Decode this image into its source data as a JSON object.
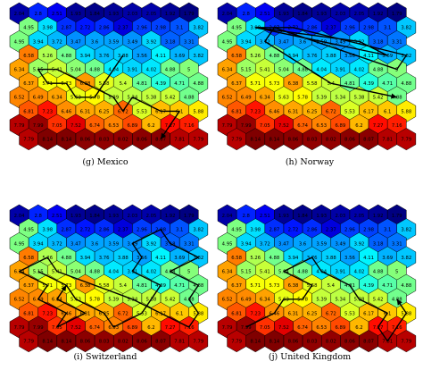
{
  "chart_data": {
    "type": "heatmap",
    "grid": {
      "rows": 10,
      "cols": 10,
      "layout": "hexagonal",
      "values": [
        [
          2.04,
          2.8,
          2.51,
          1.93,
          1.84,
          1.93,
          2.03,
          2.05,
          1.92,
          1.79
        ],
        [
          4.95,
          3.98,
          2.87,
          2.72,
          2.86,
          2.37,
          2.96,
          2.98,
          3.1,
          3.82
        ],
        [
          4.95,
          3.94,
          3.72,
          3.47,
          3.6,
          3.59,
          3.49,
          3.92,
          3.18,
          3.31
        ],
        [
          6.58,
          5.26,
          4.88,
          3.94,
          3.76,
          3.88,
          3.56,
          4.11,
          3.69,
          3.82
        ],
        [
          6.34,
          5.15,
          5.41,
          5.04,
          4.88,
          4.04,
          3.91,
          4.02,
          4.88,
          5
        ],
        [
          6.37,
          5.71,
          5.73,
          6.38,
          5.58,
          5.4,
          4.81,
          4.39,
          4.71,
          4.88
        ],
        [
          6.52,
          6.49,
          6.34,
          5.63,
          5.78,
          5.39,
          5.34,
          5.38,
          5.42,
          4.88
        ],
        [
          6.81,
          7.23,
          6.46,
          6.31,
          6.25,
          6.72,
          5.53,
          6.17,
          6.1,
          5.88
        ],
        [
          7.79,
          7.99,
          7.05,
          7.52,
          6.74,
          6.53,
          6.89,
          6.2,
          7.27,
          7.16
        ],
        [
          7.79,
          8.14,
          8.14,
          8.06,
          8.03,
          8.02,
          8.06,
          8.07,
          7.81,
          7.79
        ]
      ]
    },
    "panels": [
      {
        "caption": "(g) Mexico",
        "path": [
          [
            3,
            5
          ],
          [
            4,
            5
          ],
          [
            5,
            4
          ],
          [
            6,
            4
          ],
          [
            6,
            3
          ],
          [
            5,
            2
          ],
          [
            5,
            1
          ],
          [
            4,
            1
          ],
          [
            4,
            2
          ],
          [
            5,
            3
          ],
          [
            6,
            5
          ],
          [
            7,
            5
          ],
          [
            6,
            6
          ],
          [
            7,
            7
          ],
          [
            7,
            8
          ],
          [
            8,
            8
          ],
          [
            9,
            7
          ]
        ]
      },
      {
        "caption": "(h) Norway",
        "path": [
          [
            1,
            1
          ],
          [
            2,
            7
          ],
          [
            3,
            8
          ],
          [
            1,
            1
          ],
          [
            1,
            3
          ],
          [
            3,
            9
          ],
          [
            4,
            9
          ],
          [
            1,
            2
          ],
          [
            2,
            2
          ],
          [
            5,
            5
          ],
          [
            6,
            9
          ]
        ]
      },
      {
        "caption": "(i) Switzerland",
        "path": [
          [
            4,
            1
          ],
          [
            5,
            2
          ],
          [
            6,
            3
          ],
          [
            7,
            4
          ],
          [
            8,
            5
          ],
          [
            7,
            6
          ],
          [
            6,
            7
          ],
          [
            5,
            7
          ],
          [
            4,
            6
          ],
          [
            3,
            6
          ],
          [
            2,
            6
          ],
          [
            1,
            7
          ],
          [
            2,
            8
          ],
          [
            3,
            9
          ],
          [
            4,
            8
          ],
          [
            5,
            9
          ],
          [
            6,
            9
          ],
          [
            7,
            9
          ],
          [
            8,
            9
          ],
          [
            6,
            6
          ],
          [
            4,
            2
          ],
          [
            3,
            1
          ],
          [
            4,
            0
          ],
          [
            5,
            1
          ],
          [
            6,
            1
          ],
          [
            7,
            2
          ],
          [
            8,
            2
          ],
          [
            7,
            3
          ],
          [
            6,
            2
          ],
          [
            5,
            2
          ]
        ]
      },
      {
        "caption": "(j) United Kingdom",
        "path": [
          [
            8,
            1
          ],
          [
            7,
            2
          ],
          [
            6,
            3
          ],
          [
            6,
            4
          ],
          [
            5,
            4
          ],
          [
            4,
            3
          ],
          [
            3,
            4
          ],
          [
            4,
            5
          ],
          [
            5,
            6
          ],
          [
            6,
            7
          ],
          [
            7,
            8
          ],
          [
            8,
            8
          ],
          [
            9,
            8
          ],
          [
            8,
            9
          ],
          [
            7,
            9
          ],
          [
            6,
            9
          ]
        ]
      }
    ],
    "color_scale": {
      "min": 1.79,
      "max": 8.14,
      "low_color": "#0000cc",
      "high_color": "#cc0000"
    }
  }
}
